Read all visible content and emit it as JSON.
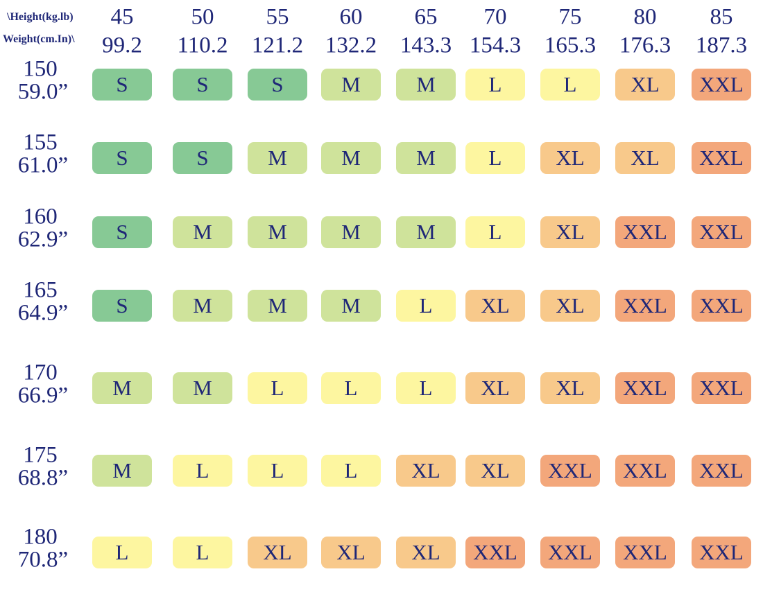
{
  "corner": {
    "top": "\\Height(kg.lb)",
    "bottom": "Weight(cm.In)\\"
  },
  "table": {
    "columns": [
      {
        "kg": "45",
        "lb": "99.2"
      },
      {
        "kg": "50",
        "lb": "110.2"
      },
      {
        "kg": "55",
        "lb": "121.2"
      },
      {
        "kg": "60",
        "lb": "132.2"
      },
      {
        "kg": "65",
        "lb": "143.3"
      },
      {
        "kg": "70",
        "lb": "154.3"
      },
      {
        "kg": "75",
        "lb": "165.3"
      },
      {
        "kg": "80",
        "lb": "176.3"
      },
      {
        "kg": "85",
        "lb": "187.3"
      }
    ],
    "rows": [
      {
        "cm": "150",
        "in": "59.0”",
        "sizes": [
          "S",
          "S",
          "S",
          "M",
          "M",
          "L",
          "L",
          "XL",
          "XXL"
        ]
      },
      {
        "cm": "155",
        "in": "61.0”",
        "sizes": [
          "S",
          "S",
          "M",
          "M",
          "M",
          "L",
          "XL",
          "XL",
          "XXL"
        ]
      },
      {
        "cm": "160",
        "in": "62.9”",
        "sizes": [
          "S",
          "M",
          "M",
          "M",
          "M",
          "L",
          "XL",
          "XXL",
          "XXL"
        ]
      },
      {
        "cm": "165",
        "in": "64.9”",
        "sizes": [
          "S",
          "M",
          "M",
          "M",
          "L",
          "XL",
          "XL",
          "XXL",
          "XXL"
        ]
      },
      {
        "cm": "170",
        "in": "66.9”",
        "sizes": [
          "M",
          "M",
          "L",
          "L",
          "L",
          "XL",
          "XL",
          "XXL",
          "XXL"
        ]
      },
      {
        "cm": "175",
        "in": "68.8”",
        "sizes": [
          "M",
          "L",
          "L",
          "L",
          "XL",
          "XL",
          "XXL",
          "XXL",
          "XXL"
        ]
      },
      {
        "cm": "180",
        "in": "70.8”",
        "sizes": [
          "L",
          "L",
          "XL",
          "XL",
          "XL",
          "XXL",
          "XXL",
          "XXL",
          "XXL"
        ]
      }
    ]
  },
  "size_colors": {
    "S": "#87c995",
    "M": "#cfe39b",
    "L": "#fdf6a0",
    "XL": "#f8c98b",
    "XXL": "#f3a77b"
  }
}
